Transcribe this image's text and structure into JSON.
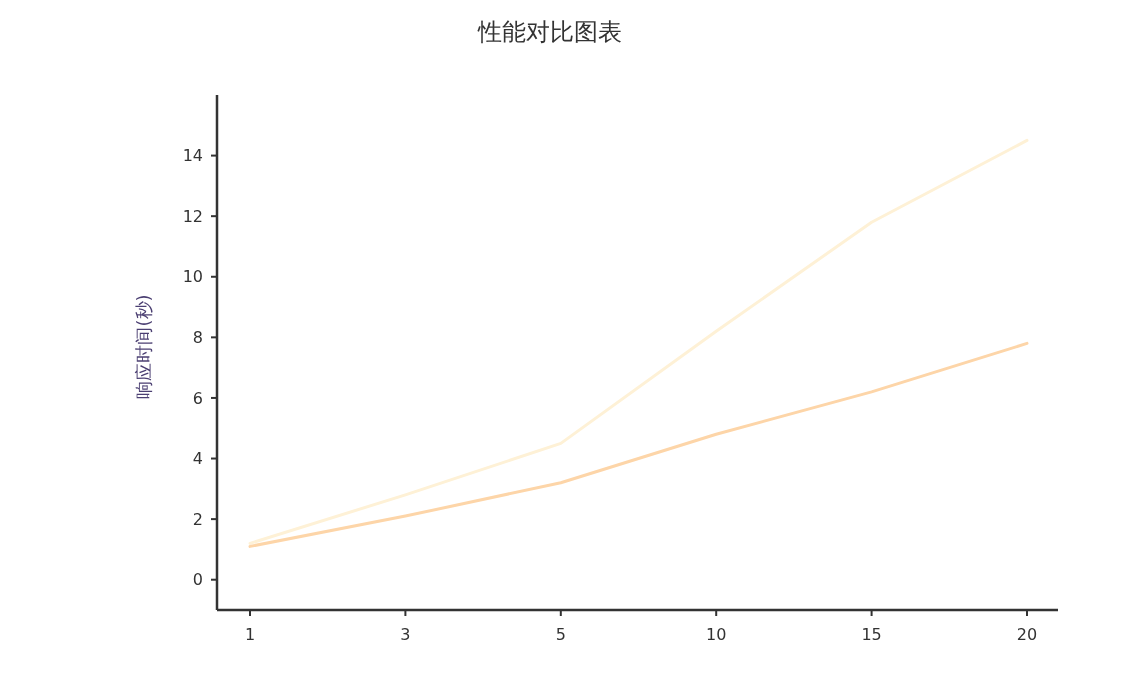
{
  "chart_data": {
    "type": "line",
    "title": "性能对比图表",
    "ylabel": "响应时间(秒)",
    "categories": [
      "1",
      "3",
      "5",
      "10",
      "15",
      "20"
    ],
    "ylim": [
      -1,
      16
    ],
    "yticks": [
      0,
      2,
      4,
      6,
      8,
      10,
      12,
      14
    ],
    "grid": false,
    "marker": "none",
    "line_style": "solid",
    "series": [
      {
        "color": "#fef1d6",
        "values": [
          1.2,
          2.8,
          4.5,
          8.2,
          11.8,
          14.5
        ]
      },
      {
        "color": "#fdd5a8",
        "values": [
          1.1,
          2.1,
          3.2,
          4.8,
          6.2,
          7.8
        ]
      }
    ]
  }
}
